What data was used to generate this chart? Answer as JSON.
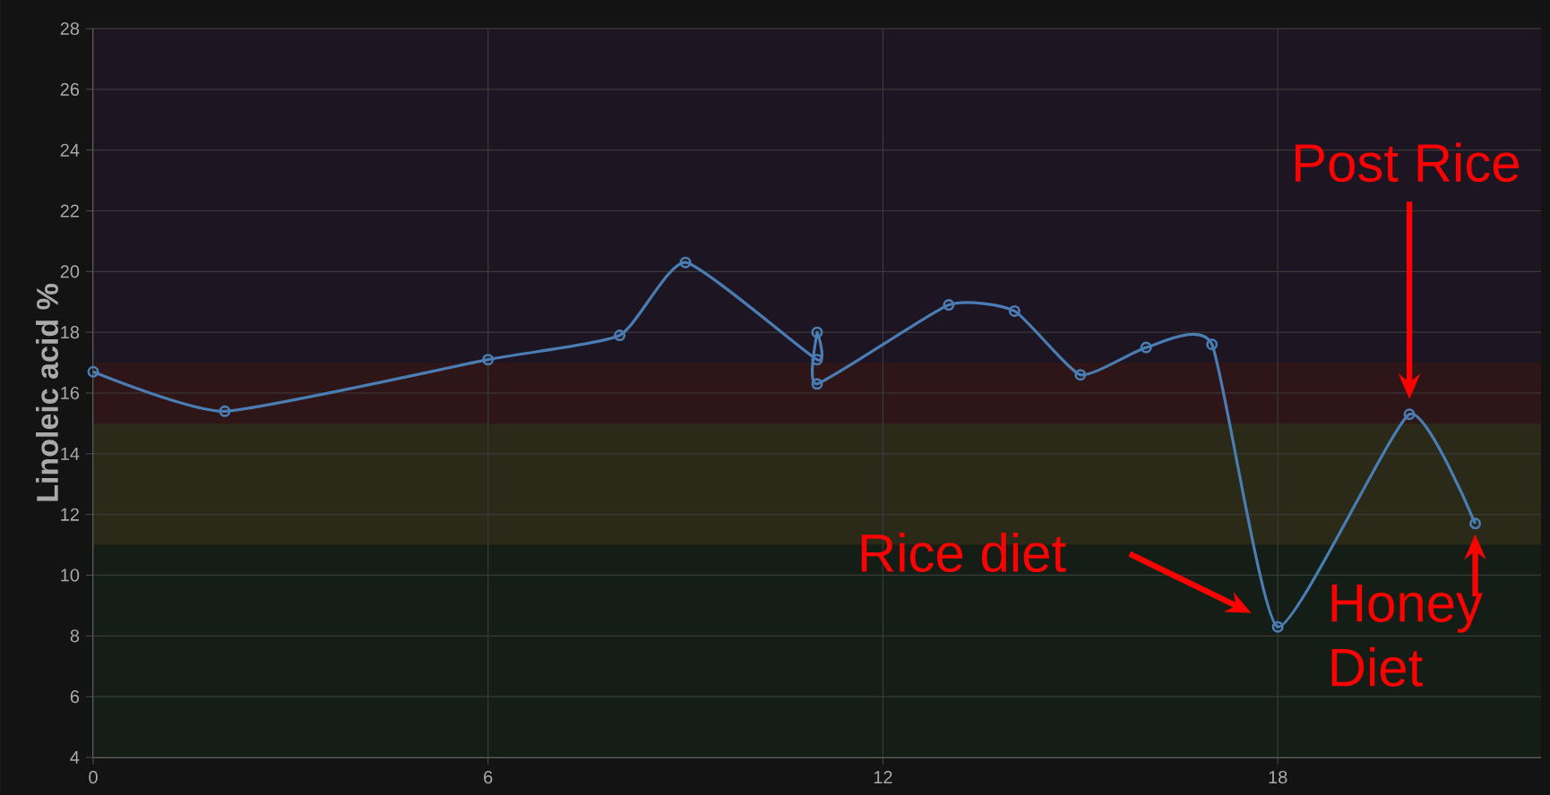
{
  "chart_data": {
    "type": "line",
    "ylabel": "Linoleic acid %",
    "x": [
      0,
      2,
      6,
      8,
      9,
      11,
      11,
      11,
      13,
      14,
      15,
      16,
      17,
      18,
      20,
      21
    ],
    "series": [
      {
        "color": "#4a7db3",
        "values": [
          16.7,
          15.4,
          17.1,
          17.9,
          20.3,
          17.1,
          18.0,
          16.3,
          18.9,
          18.7,
          16.6,
          17.5,
          17.6,
          8.3,
          15.3,
          11.7
        ]
      }
    ],
    "xlim": [
      0,
      22
    ],
    "xticks": [
      0,
      6,
      12,
      18
    ],
    "ylim": [
      4,
      28
    ],
    "yticks": [
      4,
      6,
      8,
      10,
      12,
      14,
      16,
      18,
      20,
      22,
      24,
      26,
      28
    ],
    "grid": true,
    "marker": "circle",
    "line_style": "solid",
    "bands": [
      {
        "axis": "y",
        "from": 4,
        "to": 11,
        "color": "#151e16"
      },
      {
        "axis": "y",
        "from": 11,
        "to": 15,
        "color": "#2b2a19"
      },
      {
        "axis": "y",
        "from": 15,
        "to": 17,
        "color": "#2e1618"
      },
      {
        "axis": "y",
        "from": 17,
        "to": 28,
        "color": "#1e1522"
      }
    ],
    "annotations": [
      "Post Rice",
      "Rice diet",
      "Honey Diet"
    ]
  }
}
